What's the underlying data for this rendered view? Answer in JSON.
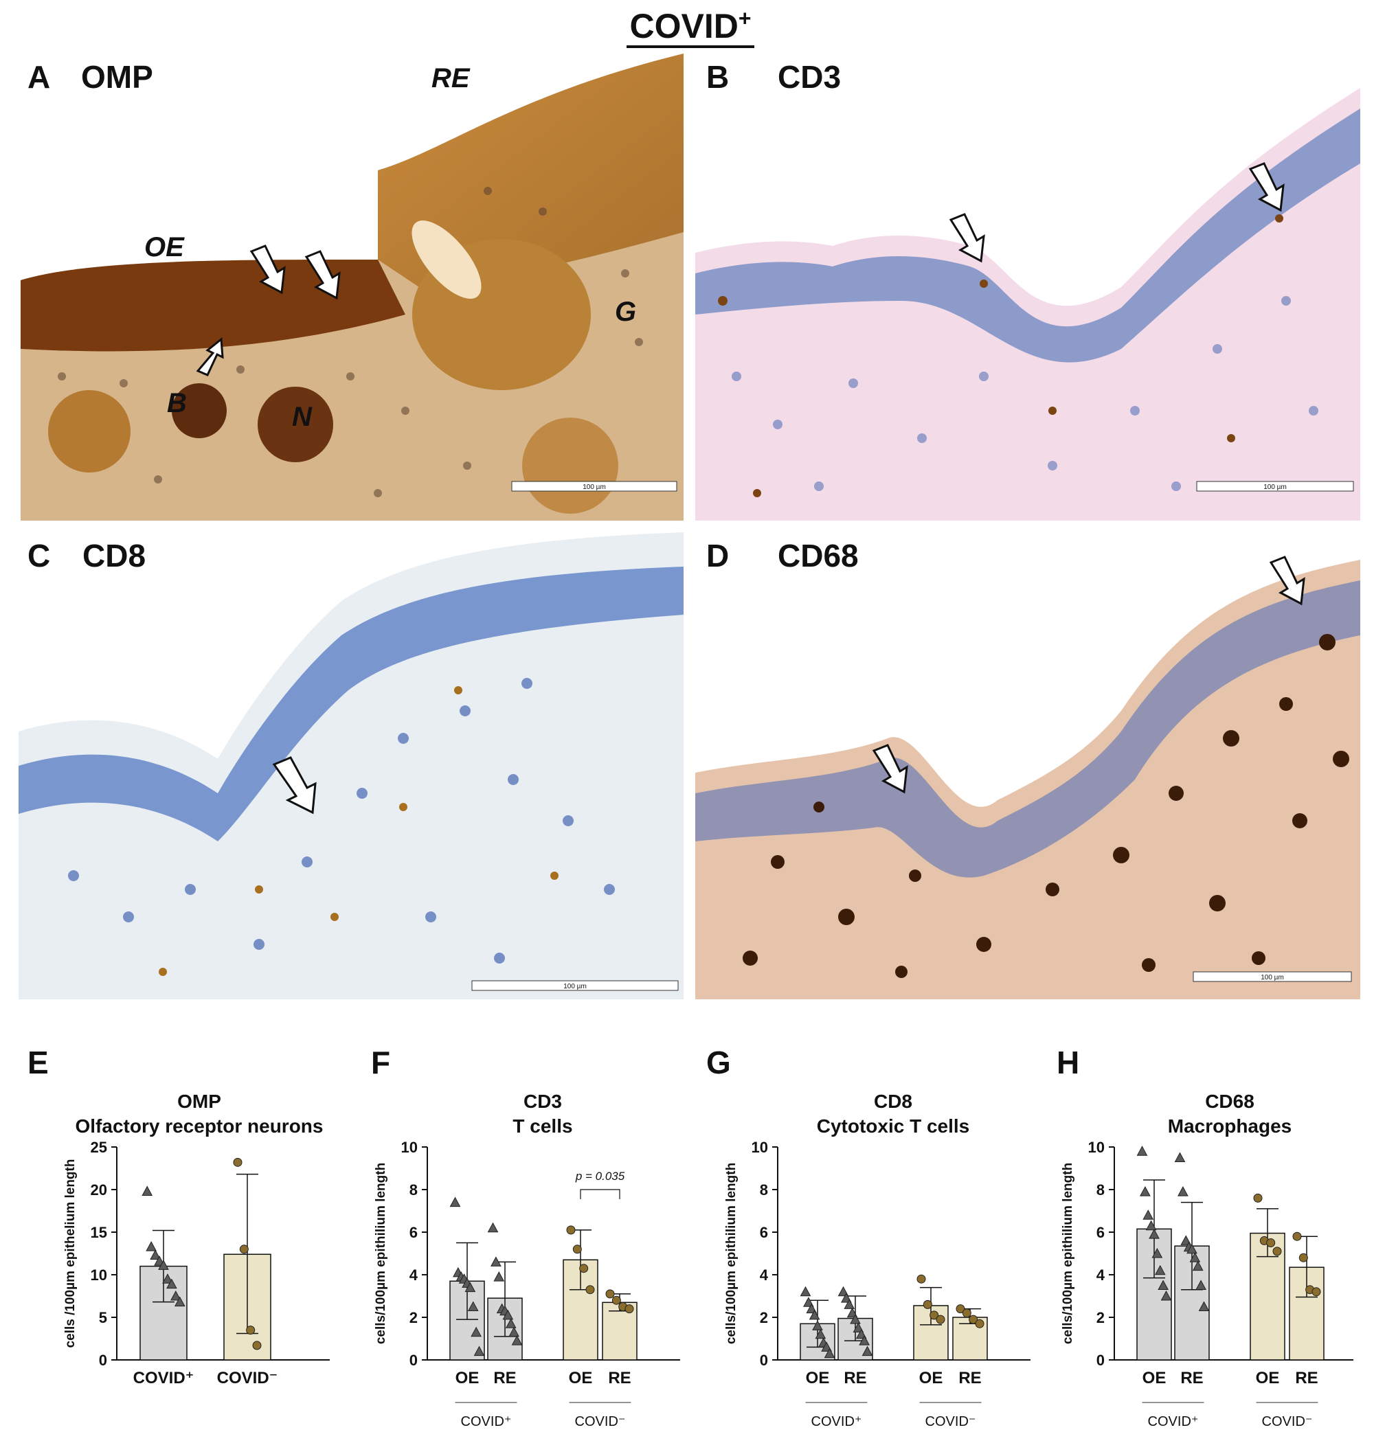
{
  "figure": {
    "title": "COVID",
    "title_sup": "+"
  },
  "micrographs": [
    {
      "letter": "A",
      "stain": "OMP",
      "regions": [
        {
          "label": "RE"
        },
        {
          "label": "OE"
        },
        {
          "label": "G"
        },
        {
          "label": "B"
        },
        {
          "label": "N"
        }
      ],
      "scale": "100 µm"
    },
    {
      "letter": "B",
      "stain": "CD3",
      "scale": "100 µm"
    },
    {
      "letter": "C",
      "stain": "CD8",
      "scale": "100 µm"
    },
    {
      "letter": "D",
      "stain": "CD68",
      "scale": "100 µm"
    }
  ],
  "colors": {
    "covid_pos": "#d6d6d6",
    "covid_neg": "#ece4c6",
    "pos_marker": "#5a5a5a",
    "neg_marker": "#8a6d2c"
  },
  "chart_data": [
    {
      "letter": "E",
      "title_line1": "OMP",
      "title_line2": "Olfactory receptor neurons",
      "type": "bar",
      "ylabel": "cells /100µm epithelium length",
      "ylim": [
        0,
        25
      ],
      "yticks": [
        0,
        5,
        10,
        15,
        20,
        25
      ],
      "categories": [
        "COVID⁺",
        "COVID⁻"
      ],
      "bars": [
        {
          "group": "COVID⁺",
          "mean": 11.0,
          "sd_low": 6.8,
          "sd_high": 15.2,
          "points": [
            19.8,
            13.3,
            12.3,
            11.6,
            11.1,
            9.5,
            8.9,
            7.5,
            6.8
          ]
        },
        {
          "group": "COVID⁻",
          "mean": 12.4,
          "sd_low": 3.1,
          "sd_high": 21.8,
          "points": [
            23.2,
            13.0,
            3.5,
            1.7
          ]
        }
      ]
    },
    {
      "letter": "F",
      "title_line1": "CD3",
      "title_line2": "T cells",
      "type": "bar",
      "ylabel": "cells/100µm epithilium length",
      "ylim": [
        0,
        10
      ],
      "yticks": [
        0,
        2,
        4,
        6,
        8,
        10
      ],
      "categories": [
        "OE",
        "RE",
        "OE",
        "RE"
      ],
      "groups": [
        "COVID⁺",
        "COVID⁻"
      ],
      "bars": [
        {
          "group": "COVID⁺",
          "cat": "OE",
          "mean": 3.7,
          "sd_low": 1.9,
          "sd_high": 5.5,
          "points": [
            7.4,
            4.1,
            3.9,
            3.8,
            3.6,
            3.4,
            2.5,
            1.3,
            0.4
          ]
        },
        {
          "group": "COVID⁺",
          "cat": "RE",
          "mean": 2.9,
          "sd_low": 1.1,
          "sd_high": 4.6,
          "points": [
            6.2,
            4.6,
            3.9,
            2.4,
            2.3,
            2.1,
            1.7,
            1.3,
            0.9
          ]
        },
        {
          "group": "COVID⁻",
          "cat": "OE",
          "mean": 4.7,
          "sd_low": 3.3,
          "sd_high": 6.1,
          "points": [
            6.1,
            5.2,
            4.3,
            3.3
          ]
        },
        {
          "group": "COVID⁻",
          "cat": "RE",
          "mean": 2.7,
          "sd_low": 2.3,
          "sd_high": 3.1,
          "points": [
            3.1,
            2.8,
            2.5,
            2.4
          ]
        }
      ],
      "annotation": "p = 0.035"
    },
    {
      "letter": "G",
      "title_line1": "CD8",
      "title_line2": "Cytotoxic T cells",
      "type": "bar",
      "ylabel": "cells/100µm epithilium length",
      "ylim": [
        0,
        10
      ],
      "yticks": [
        0,
        2,
        4,
        6,
        8,
        10
      ],
      "categories": [
        "OE",
        "RE",
        "OE",
        "RE"
      ],
      "groups": [
        "COVID⁺",
        "COVID⁻"
      ],
      "bars": [
        {
          "group": "COVID⁺",
          "cat": "OE",
          "mean": 1.7,
          "sd_low": 0.6,
          "sd_high": 2.8,
          "points": [
            3.2,
            2.7,
            2.4,
            2.1,
            1.6,
            1.2,
            0.8,
            0.6,
            0.3
          ]
        },
        {
          "group": "COVID⁺",
          "cat": "RE",
          "mean": 1.95,
          "sd_low": 0.9,
          "sd_high": 3.0,
          "points": [
            3.2,
            2.9,
            2.6,
            2.2,
            1.9,
            1.5,
            1.2,
            0.9,
            0.4
          ]
        },
        {
          "group": "COVID⁻",
          "cat": "OE",
          "mean": 2.55,
          "sd_low": 1.65,
          "sd_high": 3.4,
          "points": [
            3.8,
            2.6,
            2.1,
            1.9
          ]
        },
        {
          "group": "COVID⁻",
          "cat": "RE",
          "mean": 2.0,
          "sd_low": 1.7,
          "sd_high": 2.4,
          "points": [
            2.4,
            2.2,
            1.9,
            1.7
          ]
        }
      ]
    },
    {
      "letter": "H",
      "title_line1": "CD68",
      "title_line2": "Macrophages",
      "type": "bar",
      "ylabel": "cells/100µm epithilium length",
      "ylim": [
        0,
        10
      ],
      "yticks": [
        0,
        2,
        4,
        6,
        8,
        10
      ],
      "categories": [
        "OE",
        "RE",
        "OE",
        "RE"
      ],
      "groups": [
        "COVID⁺",
        "COVID⁻"
      ],
      "bars": [
        {
          "group": "COVID⁺",
          "cat": "OE",
          "mean": 6.15,
          "sd_low": 3.85,
          "sd_high": 8.45,
          "points": [
            9.8,
            7.9,
            6.8,
            6.3,
            5.9,
            5.0,
            4.2,
            3.5,
            3.0
          ]
        },
        {
          "group": "COVID⁺",
          "cat": "RE",
          "mean": 5.35,
          "sd_low": 3.3,
          "sd_high": 7.4,
          "points": [
            9.5,
            7.9,
            5.6,
            5.3,
            5.2,
            4.8,
            4.4,
            3.5,
            2.5
          ]
        },
        {
          "group": "COVID⁻",
          "cat": "OE",
          "mean": 5.95,
          "sd_low": 4.85,
          "sd_high": 7.1,
          "points": [
            7.6,
            5.6,
            5.5,
            5.1
          ]
        },
        {
          "group": "COVID⁻",
          "cat": "RE",
          "mean": 4.35,
          "sd_low": 2.95,
          "sd_high": 5.8,
          "points": [
            5.8,
            4.8,
            3.3,
            3.2
          ]
        }
      ]
    }
  ]
}
